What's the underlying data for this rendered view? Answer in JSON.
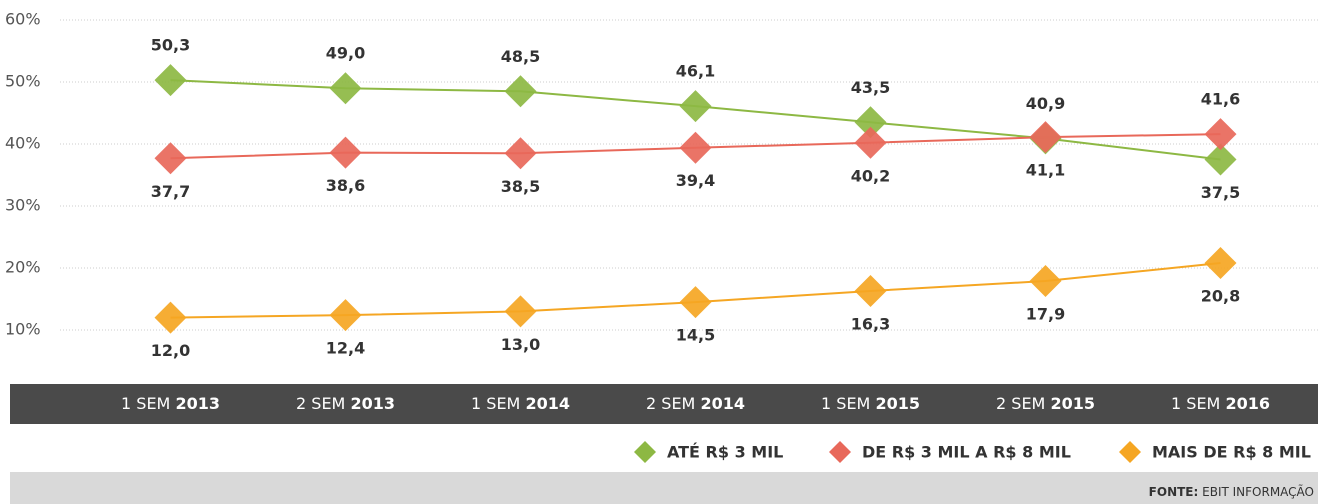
{
  "chart_data": {
    "type": "line",
    "categories": [
      "1 SEM 2013",
      "2 SEM 2013",
      "1 SEM 2014",
      "2 SEM 2014",
      "1 SEM 2015",
      "2 SEM 2015",
      "1 SEM 2016"
    ],
    "series": [
      {
        "name": "ATÉ R$ 3 MIL",
        "color": "#8db843",
        "values": [
          50.3,
          49.0,
          48.5,
          46.1,
          43.5,
          40.9,
          37.5
        ],
        "value_labels": [
          "50,3",
          "49,0",
          "48,5",
          "46,1",
          "43,5",
          "40,9",
          "37,5"
        ]
      },
      {
        "name": "DE R$ 3 MIL A R$ 8 MIL",
        "color": "#e8685a",
        "values": [
          37.7,
          38.6,
          38.5,
          39.4,
          40.2,
          41.1,
          41.6
        ],
        "value_labels": [
          "37,7",
          "38,6",
          "38,5",
          "39,4",
          "40,2",
          "41,1",
          "41,6"
        ]
      },
      {
        "name": "MAIS DE R$ 8 MIL",
        "color": "#f5a623",
        "values": [
          12.0,
          12.4,
          13.0,
          14.5,
          16.3,
          17.9,
          20.8
        ],
        "value_labels": [
          "12,0",
          "12,4",
          "13,0",
          "14,5",
          "16,3",
          "17,9",
          "20,8"
        ]
      }
    ],
    "ylim": [
      10,
      60
    ],
    "yticks": [
      {
        "value": 10,
        "label": "10%"
      },
      {
        "value": 20,
        "label": "20%"
      },
      {
        "value": 30,
        "label": "30%"
      },
      {
        "value": 40,
        "label": "40%"
      },
      {
        "value": 50,
        "label": "50%"
      },
      {
        "value": 60,
        "label": "60%"
      }
    ],
    "grid": true,
    "source_label": "FONTE:",
    "source": "EBIT INFORMAÇÃO"
  }
}
